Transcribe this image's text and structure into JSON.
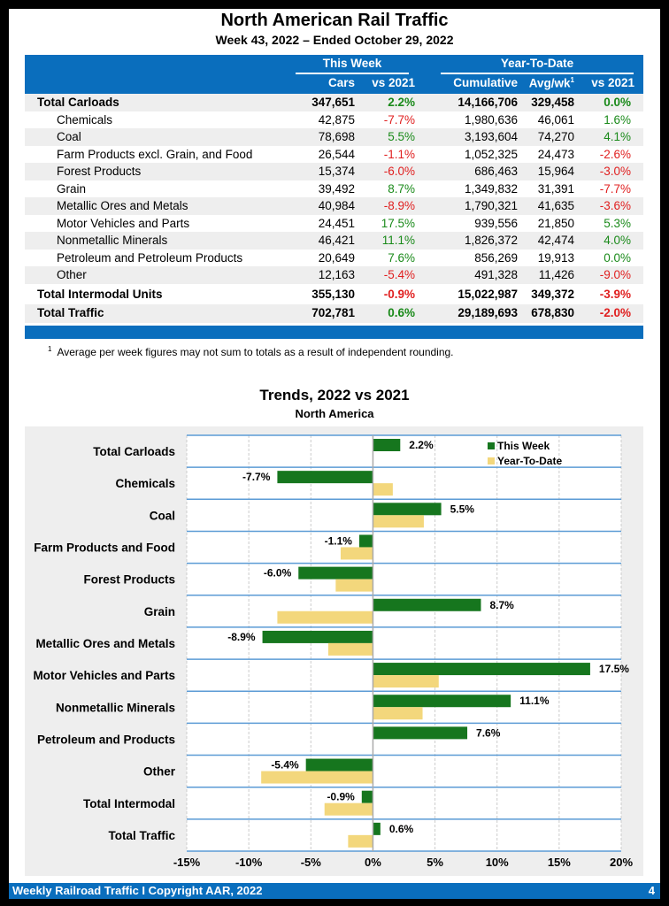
{
  "title": "North American Rail Traffic",
  "subtitle": "Week 43, 2022 – Ended October 29, 2022",
  "table": {
    "group_this_week": "This Week",
    "group_ytd": "Year-To-Date",
    "columns": [
      "Cars",
      "vs 2021",
      "Cumulative",
      "Avg/wk",
      "vs 2021"
    ],
    "avg_superscript": "1",
    "rows": [
      {
        "label": "Total Carloads",
        "bold": true,
        "cars": "347,651",
        "vs": "2.2%",
        "cum": "14,166,706",
        "avg": "329,458",
        "ytdvs": "0.0%"
      },
      {
        "label": "Chemicals",
        "cars": "42,875",
        "vs": "-7.7%",
        "cum": "1,980,636",
        "avg": "46,061",
        "ytdvs": "1.6%"
      },
      {
        "label": "Coal",
        "cars": "78,698",
        "vs": "5.5%",
        "cum": "3,193,604",
        "avg": "74,270",
        "ytdvs": "4.1%"
      },
      {
        "label": "Farm Products excl. Grain, and Food",
        "cars": "26,544",
        "vs": "-1.1%",
        "cum": "1,052,325",
        "avg": "24,473",
        "ytdvs": "-2.6%"
      },
      {
        "label": "Forest Products",
        "cars": "15,374",
        "vs": "-6.0%",
        "cum": "686,463",
        "avg": "15,964",
        "ytdvs": "-3.0%"
      },
      {
        "label": "Grain",
        "cars": "39,492",
        "vs": "8.7%",
        "cum": "1,349,832",
        "avg": "31,391",
        "ytdvs": "-7.7%"
      },
      {
        "label": "Metallic Ores and Metals",
        "cars": "40,984",
        "vs": "-8.9%",
        "cum": "1,790,321",
        "avg": "41,635",
        "ytdvs": "-3.6%"
      },
      {
        "label": "Motor Vehicles and Parts",
        "cars": "24,451",
        "vs": "17.5%",
        "cum": "939,556",
        "avg": "21,850",
        "ytdvs": "5.3%"
      },
      {
        "label": "Nonmetallic Minerals",
        "cars": "46,421",
        "vs": "11.1%",
        "cum": "1,826,372",
        "avg": "42,474",
        "ytdvs": "4.0%"
      },
      {
        "label": "Petroleum and Petroleum Products",
        "cars": "20,649",
        "vs": "7.6%",
        "cum": "856,269",
        "avg": "19,913",
        "ytdvs": "0.0%"
      },
      {
        "label": "Other",
        "cars": "12,163",
        "vs": "-5.4%",
        "cum": "491,328",
        "avg": "11,426",
        "ytdvs": "-9.0%"
      },
      {
        "label": "Total Intermodal Units",
        "bold": true,
        "cars": "355,130",
        "vs": "-0.9%",
        "cum": "15,022,987",
        "avg": "349,372",
        "ytdvs": "-3.9%"
      },
      {
        "label": "Total Traffic",
        "bold": true,
        "cars": "702,781",
        "vs": "0.6%",
        "cum": "29,189,693",
        "avg": "678,830",
        "ytdvs": "-2.0%"
      }
    ]
  },
  "footnote_mark": "1",
  "footnote": "Average per week figures may not sum to totals as a result of independent rounding.",
  "colors": {
    "header_blue": "#0a6ebd",
    "positive": "#1a8a1a",
    "negative": "#e02020",
    "this_week": "#16761e",
    "ytd": "#f3d77c"
  },
  "chart_data": {
    "type": "bar",
    "orientation": "horizontal",
    "title": "Trends, 2022 vs 2021",
    "subtitle": "North America",
    "categories": [
      "Total Carloads",
      "Chemicals",
      "Coal",
      "Farm Products and Food",
      "Forest Products",
      "Grain",
      "Metallic Ores and Metals",
      "Motor Vehicles and Parts",
      "Nonmetallic Minerals",
      "Petroleum and Products",
      "Other",
      "Total Intermodal",
      "Total Traffic"
    ],
    "series": [
      {
        "name": "This Week",
        "values": [
          2.2,
          -7.7,
          5.5,
          -1.1,
          -6.0,
          8.7,
          -8.9,
          17.5,
          11.1,
          7.6,
          -5.4,
          -0.9,
          0.6
        ],
        "labels": [
          "2.2%",
          "-7.7%",
          "5.5%",
          "-1.1%",
          "-6.0%",
          "8.7%",
          "-8.9%",
          "17.5%",
          "11.1%",
          "7.6%",
          "-5.4%",
          "-0.9%",
          "0.6%"
        ]
      },
      {
        "name": "Year-To-Date",
        "values": [
          0.0,
          1.6,
          4.1,
          -2.6,
          -3.0,
          -7.7,
          -3.6,
          5.3,
          4.0,
          0.0,
          -9.0,
          -3.9,
          -2.0
        ]
      }
    ],
    "xlim": [
      -15,
      20
    ],
    "xticks": [
      "-15%",
      "-10%",
      "-5%",
      "0%",
      "5%",
      "10%",
      "15%",
      "20%"
    ],
    "legend": "top-right",
    "grid": true
  },
  "footer": {
    "text": "Weekly Railroad Traffic I Copyright AAR, 2022",
    "page": "4"
  }
}
